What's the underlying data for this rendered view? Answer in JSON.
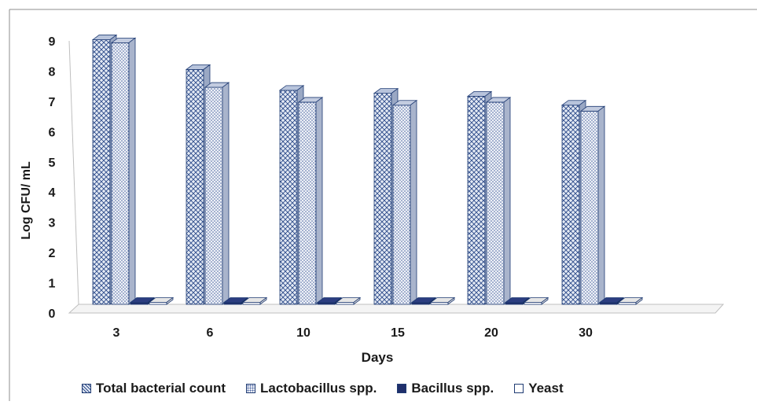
{
  "chart_data": {
    "type": "bar",
    "title": "",
    "xlabel": "Days",
    "ylabel": "Log CFU/ mL",
    "ylim": [
      0,
      9
    ],
    "yticks": [
      "0",
      "1",
      "2",
      "3",
      "4",
      "5",
      "6",
      "7",
      "8",
      "9"
    ],
    "categories": [
      "3",
      "6",
      "10",
      "15",
      "20",
      "30"
    ],
    "legend_position": "bottom",
    "series": [
      {
        "name": "Total bacterial count",
        "values": [
          8.9,
          7.9,
          7.2,
          7.1,
          7.0,
          6.7
        ],
        "color": "#dfe6f2",
        "pattern": "crosshatch"
      },
      {
        "name": "Lactobacillus spp.",
        "values": [
          8.8,
          7.3,
          6.8,
          6.7,
          6.8,
          6.5
        ],
        "color": "#e8ecf4",
        "pattern": "dots"
      },
      {
        "name": "Bacillus spp.",
        "values": [
          0,
          0,
          0,
          0,
          0,
          0
        ],
        "color": "#1f2f6b",
        "pattern": "solid"
      },
      {
        "name": "Yeast",
        "values": [
          0,
          0,
          0,
          0,
          0,
          0
        ],
        "color": "#ffffff",
        "pattern": "none"
      }
    ]
  }
}
